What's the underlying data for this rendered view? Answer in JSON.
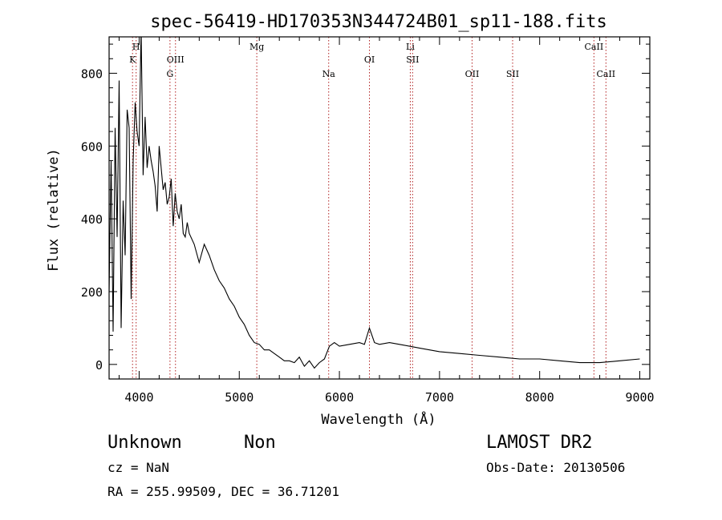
{
  "chart_data": {
    "type": "line",
    "title": "spec-56419-HD170353N344724B01_sp11-188.fits",
    "xlabel": "Wavelength (Å)",
    "ylabel": "Flux (relative)",
    "xlim": [
      3700,
      9100
    ],
    "ylim": [
      -40,
      900
    ],
    "xticks": [
      4000,
      5000,
      6000,
      7000,
      8000,
      9000
    ],
    "yticks": [
      0,
      200,
      400,
      600,
      800
    ],
    "grid": false,
    "line_color": "#000000",
    "marker_color": "#b22222",
    "series": [
      {
        "x": [
          3700,
          3720,
          3740,
          3760,
          3780,
          3800,
          3820,
          3840,
          3860,
          3880,
          3900,
          3920,
          3940,
          3960,
          3980,
          4000,
          4020,
          4040,
          4060,
          4080,
          4100,
          4120,
          4140,
          4160,
          4180,
          4200,
          4220,
          4240,
          4260,
          4280,
          4300,
          4320,
          4340,
          4360,
          4380,
          4400,
          4420,
          4440,
          4460,
          4480,
          4500,
          4550,
          4600,
          4650,
          4700,
          4750,
          4800,
          4850,
          4900,
          4950,
          5000,
          5050,
          5100,
          5150,
          5200,
          5250,
          5300,
          5350,
          5400,
          5450,
          5500,
          5550,
          5600,
          5650,
          5700,
          5750,
          5800,
          5850,
          5900,
          5950,
          6000,
          6100,
          6200,
          6250,
          6300,
          6350,
          6400,
          6500,
          6600,
          6700,
          6800,
          6900,
          7000,
          7200,
          7400,
          7600,
          7800,
          8000,
          8200,
          8400,
          8600,
          8800,
          9000
        ],
        "y": [
          200,
          560,
          90,
          650,
          350,
          780,
          100,
          450,
          300,
          700,
          650,
          180,
          560,
          720,
          640,
          600,
          920,
          520,
          680,
          540,
          600,
          560,
          530,
          490,
          420,
          600,
          540,
          480,
          500,
          440,
          460,
          510,
          380,
          470,
          420,
          400,
          440,
          360,
          350,
          390,
          360,
          330,
          280,
          330,
          300,
          260,
          230,
          210,
          180,
          160,
          130,
          110,
          80,
          60,
          55,
          40,
          40,
          30,
          20,
          10,
          10,
          5,
          20,
          -5,
          10,
          -10,
          5,
          15,
          50,
          60,
          50,
          55,
          60,
          55,
          100,
          60,
          55,
          60,
          55,
          50,
          45,
          40,
          35,
          30,
          25,
          20,
          15,
          15,
          10,
          5,
          5,
          10,
          15
        ]
      }
    ],
    "line_markers": [
      {
        "label": "H",
        "x": 3970,
        "row": 0
      },
      {
        "label": "K",
        "x": 3934,
        "row": 1
      },
      {
        "label": "OIII",
        "x": 4363,
        "row": 1
      },
      {
        "label": "G",
        "x": 4308,
        "row": 2
      },
      {
        "label": "Mg",
        "x": 5175,
        "row": 0
      },
      {
        "label": "Na",
        "x": 5893,
        "row": 2
      },
      {
        "label": "OI",
        "x": 6300,
        "row": 1
      },
      {
        "label": "Li",
        "x": 6708,
        "row": 0
      },
      {
        "label": "SII",
        "x": 6731,
        "row": 1
      },
      {
        "label": "OII",
        "x": 7325,
        "row": 2
      },
      {
        "label": "SII",
        "x": 7730,
        "row": 2
      },
      {
        "label": "CaII",
        "x": 8542,
        "row": 0
      },
      {
        "label": "CaII",
        "x": 8662,
        "row": 2
      }
    ]
  },
  "footer": {
    "classification": "Unknown",
    "subclass": "Non",
    "survey": "LAMOST DR2",
    "cz": "cz = NaN",
    "obs_date": "Obs-Date: 20130506",
    "coords": "RA = 255.99509, DEC =  36.71201"
  }
}
